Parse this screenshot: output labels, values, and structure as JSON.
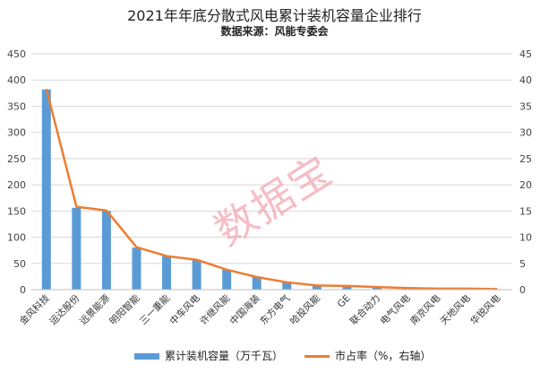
{
  "colors": {
    "bar": "#5b9bd5",
    "line": "#ed7d31",
    "grid": "#d9d9d9",
    "watermark": "#f4a7b4"
  },
  "watermark": "数据宝",
  "chart_data": {
    "type": "bar",
    "title": "2021年年底分散式风电累计装机容量企业排行",
    "subtitle": "数据来源：风能专委会",
    "categories": [
      "金风科技",
      "运达股份",
      "远景能源",
      "明阳智能",
      "三一重能",
      "中车风电",
      "许继风能",
      "中国海装",
      "东方电气",
      "哈投风能",
      "GE",
      "联合动力",
      "电气风电",
      "南京风电",
      "天地风电",
      "华锐风电"
    ],
    "series": [
      {
        "name": "累计装机容量（万千瓦）",
        "type": "bar",
        "axis": "left",
        "values": [
          382,
          156,
          150,
          80,
          64,
          57,
          38,
          25,
          14,
          8,
          7,
          5,
          3,
          2,
          2,
          1
        ]
      },
      {
        "name": "市占率（%，右轴）",
        "type": "line",
        "axis": "right",
        "values": [
          38.3,
          15.8,
          15.1,
          8.1,
          6.4,
          5.7,
          3.8,
          2.4,
          1.4,
          0.8,
          0.7,
          0.5,
          0.3,
          0.2,
          0.2,
          0.1
        ]
      }
    ],
    "y_left": {
      "min": 0,
      "max": 450,
      "ticks": [
        0,
        50,
        100,
        150,
        200,
        250,
        300,
        350,
        400,
        450
      ]
    },
    "y_right": {
      "min": 0,
      "max": 45,
      "ticks": [
        0,
        5,
        10,
        15,
        20,
        25,
        30,
        35,
        40,
        45
      ]
    },
    "grid": true,
    "legend_position": "bottom"
  }
}
